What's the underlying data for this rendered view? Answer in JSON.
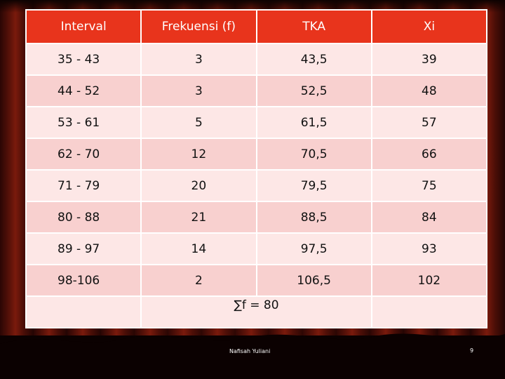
{
  "table": {
    "headers": [
      "Interval",
      "Frekuensi (f)",
      "TKA",
      "Xi"
    ],
    "rows": [
      [
        "35 - 43",
        "3",
        "43,5",
        "39"
      ],
      [
        "44 - 52",
        "3",
        "52,5",
        "48"
      ],
      [
        "53 - 61",
        "5",
        "61,5",
        "57"
      ],
      [
        "62 - 70",
        "12",
        "70,5",
        "66"
      ],
      [
        "71 - 79",
        "20",
        "79,5",
        "75"
      ],
      [
        "80 - 88",
        "21",
        "88,5",
        "84"
      ],
      [
        "89 - 97",
        "14",
        "97,5",
        "93"
      ],
      [
        "98-106",
        "2",
        "106,5",
        "102"
      ]
    ],
    "sum_label": "∑f = 80"
  },
  "footer": {
    "author": "Nafisah Yuliani",
    "page_number": "9"
  },
  "colors": {
    "header_bg": "#e8341c",
    "row_bg": "#fde7e6",
    "row_alt_bg": "#f8d0cf",
    "curtain": "#5a1209"
  }
}
